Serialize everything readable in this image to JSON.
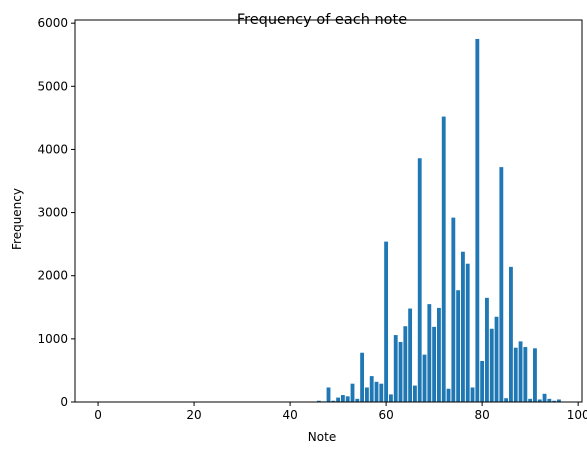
{
  "chart_data": {
    "type": "bar",
    "title": "Frequency of each note",
    "xlabel": "Note",
    "ylabel": "Frequency",
    "xlim": [
      -4.8,
      100.8
    ],
    "ylim": [
      0,
      6050
    ],
    "xticks": [
      0,
      20,
      40,
      60,
      80,
      100
    ],
    "yticks": [
      0,
      1000,
      2000,
      3000,
      4000,
      5000,
      6000
    ],
    "bar_color": "#1f77b4",
    "grid": false,
    "x": [
      46,
      47,
      48,
      49,
      50,
      51,
      52,
      53,
      54,
      55,
      56,
      57,
      58,
      59,
      60,
      61,
      62,
      63,
      64,
      65,
      66,
      67,
      68,
      69,
      70,
      71,
      72,
      73,
      74,
      75,
      76,
      77,
      78,
      79,
      80,
      81,
      82,
      83,
      84,
      85,
      86,
      87,
      88,
      89,
      90,
      91,
      92,
      93,
      94,
      95,
      96
    ],
    "values": [
      20,
      10,
      230,
      20,
      70,
      110,
      90,
      290,
      50,
      780,
      230,
      410,
      320,
      290,
      2540,
      120,
      1060,
      950,
      1200,
      1480,
      260,
      3860,
      750,
      1550,
      1190,
      1490,
      4520,
      210,
      2920,
      1770,
      2380,
      2190,
      230,
      5750,
      650,
      1650,
      1160,
      1350,
      3720,
      60,
      2140,
      860,
      960,
      870,
      50,
      850,
      40,
      130,
      50,
      20,
      40
    ]
  }
}
